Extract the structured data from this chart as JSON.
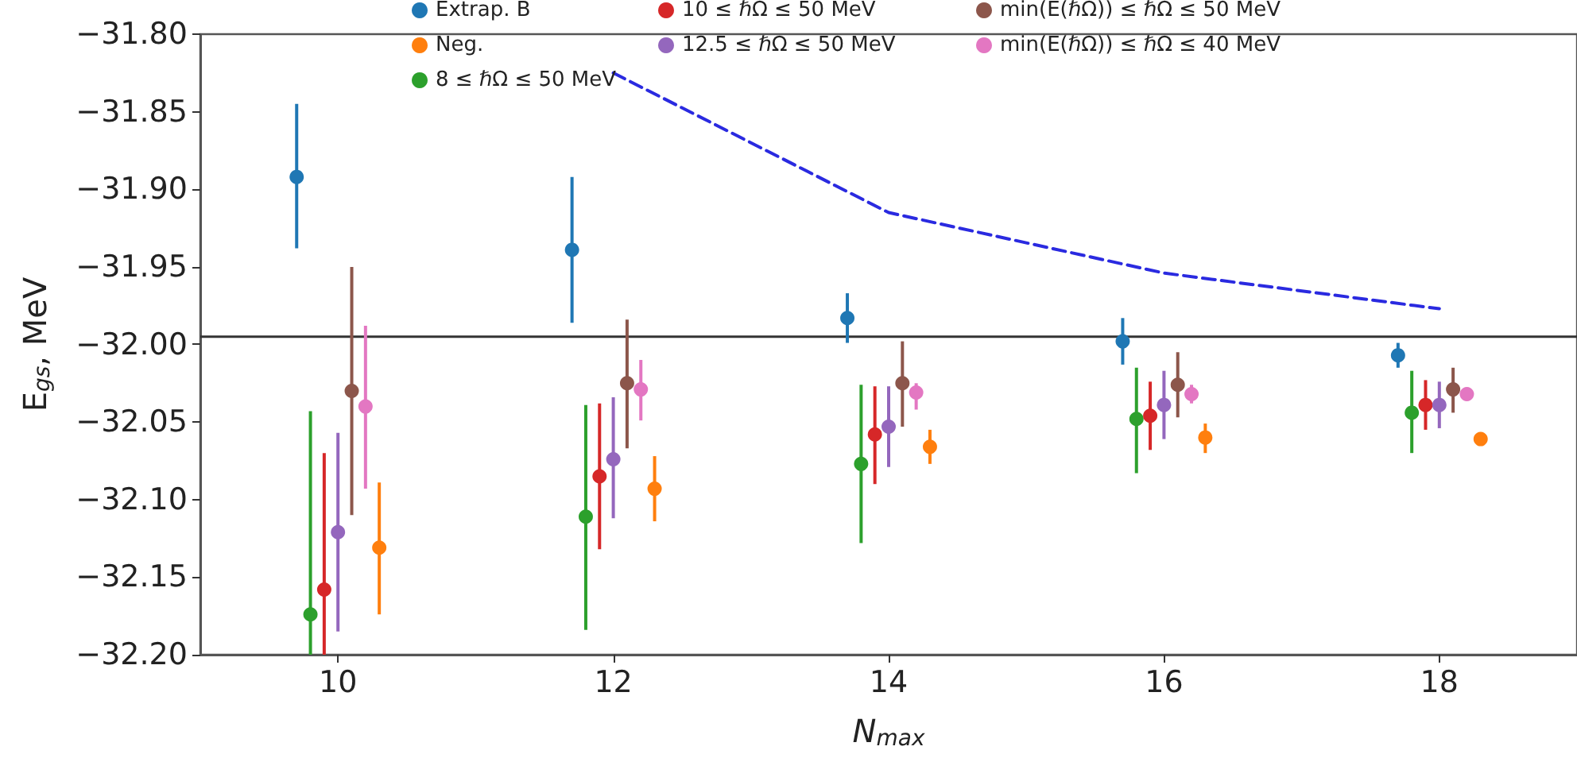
{
  "chart_data": {
    "type": "scatter",
    "xlabel": "N$_{max}$",
    "ylabel": "E$_{gs}$, MeV",
    "xlim": [
      9,
      19
    ],
    "xticks": [
      10,
      12,
      14,
      16,
      18
    ],
    "ylim": [
      -32.2,
      -31.8
    ],
    "yticks": [
      {
        "value": -32.2,
        "label": "−32.20"
      },
      {
        "value": -32.15,
        "label": "−32.15"
      },
      {
        "value": -32.1,
        "label": "−32.10"
      },
      {
        "value": -32.05,
        "label": "−32.05"
      },
      {
        "value": -32.0,
        "label": "−32.00"
      },
      {
        "value": -31.95,
        "label": "−31.95"
      },
      {
        "value": -31.9,
        "label": "−31.90"
      },
      {
        "value": -31.85,
        "label": "−31.85"
      },
      {
        "value": -31.8,
        "label": "−31.80"
      }
    ],
    "grid": false,
    "legend": "top",
    "marker": "circle",
    "ref_lines": [
      {
        "axis": "y",
        "value": -31.995,
        "color": "#333333"
      }
    ],
    "series": [
      {
        "name": "Extrap. B",
        "color": "#1f77b4",
        "x": [
          9.7,
          11.7,
          13.7,
          15.7,
          17.7
        ],
        "values": [
          -31.892,
          -31.939,
          -31.983,
          -31.998,
          -32.007
        ],
        "errors": [
          [
            -31.938,
            -31.845
          ],
          [
            -31.986,
            -31.892
          ],
          [
            -31.999,
            -31.967
          ],
          [
            -32.013,
            -31.983
          ],
          [
            -32.015,
            -31.999
          ]
        ]
      },
      {
        "name": "Neg.",
        "color": "#ff7f0e",
        "x": [
          10.3,
          12.3,
          14.3,
          16.3,
          18.3
        ],
        "values": [
          -32.131,
          -32.093,
          -32.066,
          -32.06,
          -32.061
        ],
        "errors": [
          [
            -32.174,
            -32.089
          ],
          [
            -32.114,
            -32.072
          ],
          [
            -32.077,
            -32.055
          ],
          [
            -32.07,
            -32.051
          ],
          null
        ]
      },
      {
        "name": "8 ≤ ℏΩ ≤ 50 MeV",
        "color": "#2ca02c",
        "x": [
          9.8,
          11.8,
          13.8,
          15.8,
          17.8
        ],
        "values": [
          -32.174,
          -32.111,
          -32.077,
          -32.048,
          -32.044
        ],
        "errors": [
          [
            -32.2,
            -32.043
          ],
          [
            -32.184,
            -32.039
          ],
          [
            -32.128,
            -32.026
          ],
          [
            -32.083,
            -32.015
          ],
          [
            -32.07,
            -32.017
          ]
        ]
      },
      {
        "name": "10 ≤ ℏΩ ≤ 50 MeV",
        "color": "#d62728",
        "x": [
          9.9,
          11.9,
          13.9,
          15.9,
          17.9
        ],
        "values": [
          -32.158,
          -32.085,
          -32.058,
          -32.046,
          -32.039
        ],
        "errors": [
          [
            -32.2,
            -32.07
          ],
          [
            -32.132,
            -32.038
          ],
          [
            -32.09,
            -32.027
          ],
          [
            -32.068,
            -32.024
          ],
          [
            -32.055,
            -32.023
          ]
        ]
      },
      {
        "name": "12.5 ≤ ℏΩ ≤ 50 MeV",
        "color": "#9467bd",
        "x": [
          10,
          12,
          14,
          16,
          18
        ],
        "values": [
          -32.121,
          -32.074,
          -32.053,
          -32.039,
          -32.039
        ],
        "errors": [
          [
            -32.185,
            -32.057
          ],
          [
            -32.112,
            -32.034
          ],
          [
            -32.079,
            -32.027
          ],
          [
            -32.061,
            -32.017
          ],
          [
            -32.054,
            -32.024
          ]
        ]
      },
      {
        "name": "min(E(ℏΩ)) ≤ ℏΩ ≤ 50 MeV",
        "color": "#8c564b",
        "x": [
          10.1,
          12.1,
          14.1,
          16.1,
          18.1
        ],
        "values": [
          -32.03,
          -32.025,
          -32.025,
          -32.026,
          -32.029
        ],
        "errors": [
          [
            -32.11,
            -31.95
          ],
          [
            -32.067,
            -31.984
          ],
          [
            -32.053,
            -31.998
          ],
          [
            -32.047,
            -32.005
          ],
          [
            -32.044,
            -32.015
          ]
        ]
      },
      {
        "name": "min(E(ℏΩ)) ≤ ℏΩ ≤ 40 MeV",
        "color": "#e377c2",
        "x": [
          10.2,
          12.2,
          14.2,
          16.2,
          18.2
        ],
        "values": [
          -32.04,
          -32.029,
          -32.031,
          -32.032,
          -32.032
        ],
        "errors": [
          [
            -32.093,
            -31.988
          ],
          [
            -32.049,
            -32.01
          ],
          [
            -32.042,
            -32.025
          ],
          [
            -32.038,
            -32.026
          ],
          [
            -32.036,
            -32.028
          ]
        ]
      },
      {
        "type": "line",
        "color": "#2a2ae0",
        "line_style": "dashed",
        "marker": "none",
        "x": [
          12,
          14,
          16,
          18
        ],
        "values": [
          -31.825,
          -31.915,
          -31.954,
          -31.977
        ]
      }
    ]
  }
}
